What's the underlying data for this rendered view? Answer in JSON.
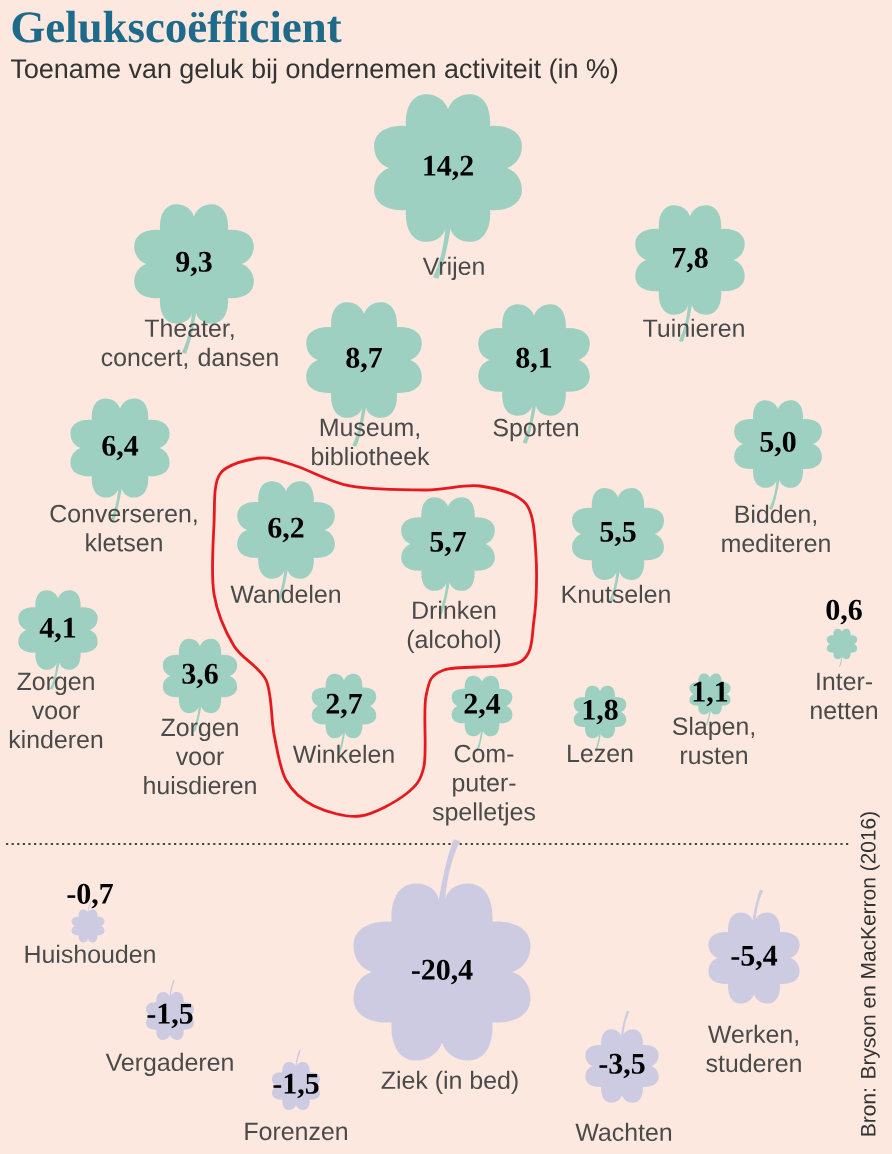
{
  "chart_data": {
    "type": "other",
    "title": "Gelukscoëfficient",
    "subtitle": "Toename van geluk bij ondernemen activiteit (in %)",
    "categories": [
      "Vrijen",
      "Theater, concert, dansen",
      "Tuinieren",
      "Museum, bibliotheek",
      "Sporten",
      "Converseren, kletsen",
      "Bidden, mediteren",
      "Wandelen",
      "Drinken (alcohol)",
      "Knutselen",
      "Zorgen voor kinderen",
      "Zorgen voor huisdieren",
      "Winkelen",
      "Com-puter-spelletjes",
      "Lezen",
      "Slapen, rusten",
      "Inter-netten",
      "Huishouden",
      "Vergaderen",
      "Forenzen",
      "Ziek (in bed)",
      "Wachten",
      "Werken, studeren"
    ],
    "values": [
      14.2,
      9.3,
      7.8,
      8.7,
      8.1,
      6.4,
      5.0,
      6.2,
      5.7,
      5.5,
      4.1,
      3.6,
      2.7,
      2.4,
      1.8,
      1.1,
      0.6,
      -0.7,
      -1.5,
      -1.5,
      -20.4,
      -3.5,
      -5.4
    ],
    "value_labels": [
      "14,2",
      "9,3",
      "7,8",
      "8,7",
      "8,1",
      "6,4",
      "5,0",
      "6,2",
      "5,7",
      "5,5",
      "4,1",
      "3,6",
      "2,7",
      "2,4",
      "1,8",
      "1,1",
      "0,6",
      "-0,7",
      "-1,5",
      "-1,5",
      "-20,4",
      "-3,5",
      "-5,4"
    ],
    "colors": [
      "#9dd0c0",
      "#9dd0c0",
      "#9dd0c0",
      "#9dd0c0",
      "#9dd0c0",
      "#9dd0c0",
      "#9dd0c0",
      "#9dd0c0",
      "#9dd0c0",
      "#9dd0c0",
      "#9dd0c0",
      "#9dd0c0",
      "#9dd0c0",
      "#9dd0c0",
      "#9dd0c0",
      "#9dd0c0",
      "#9dd0c0",
      "#cdcbe2",
      "#cdcbe2",
      "#cdcbe2",
      "#cdcbe2",
      "#cdcbe2",
      "#cdcbe2"
    ],
    "annotations": [
      "Bron: Bryson en MacKerron (2016)"
    ]
  }
}
